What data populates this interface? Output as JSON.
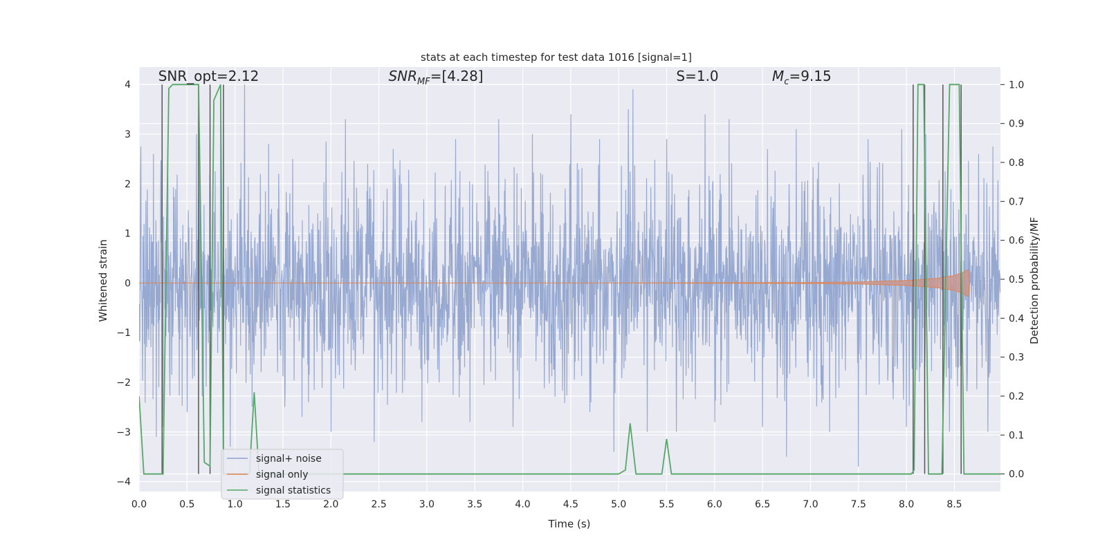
{
  "chart_data": {
    "type": "line",
    "title": "stats at each timestep for test data 1016 [signal=1]",
    "xlabel": "Time (s)",
    "ylabel": "Whitened strain",
    "ylabel_right": "Detection probability/MF",
    "xlim": [
      0.0,
      8.98
    ],
    "ylim": [
      -4.2,
      4.35
    ],
    "ylim_right": [
      -0.045,
      1.045
    ],
    "x_ticks": [
      "0.0",
      "0.5",
      "1.0",
      "1.5",
      "2.0",
      "2.5",
      "3.0",
      "3.5",
      "4.0",
      "4.5",
      "5.0",
      "5.5",
      "6.0",
      "6.5",
      "7.0",
      "7.5",
      "8.0",
      "8.5"
    ],
    "y_ticks": [
      "−4",
      "−3",
      "−2",
      "−1",
      "0",
      "1",
      "2",
      "3",
      "4"
    ],
    "y_ticks_right": [
      "0.0",
      "0.1",
      "0.2",
      "0.3",
      "0.4",
      "0.5",
      "0.6",
      "0.7",
      "0.8",
      "0.9",
      "1.0"
    ],
    "grid": true,
    "legend_position": "lower-left",
    "annotations": [
      {
        "label": "SNR_opt=2.12",
        "x": 0.2,
        "y": 4.1
      },
      {
        "label": "SNR_MF=[4.28]",
        "x": 2.6,
        "y": 4.1
      },
      {
        "label": "S=1.0",
        "x": 5.6,
        "y": 4.1
      },
      {
        "label": "M_c=9.15",
        "x": 6.6,
        "y": 4.1
      }
    ],
    "series": [
      {
        "name": "signal+ noise",
        "axis": "left",
        "color": "#8ea2cc",
        "description": "whitened noise trace, amplitude mostly within ±2.5",
        "envelope": {
          "upper": 2.5,
          "lower": -2.3
        },
        "peaks": [
          [
            0.02,
            2.75
          ],
          [
            0.15,
            2.6
          ],
          [
            0.3,
            2.7
          ],
          [
            0.6,
            3.0
          ],
          [
            0.85,
            3.6
          ],
          [
            1.1,
            4.0
          ],
          [
            1.35,
            2.8
          ],
          [
            1.6,
            2.5
          ],
          [
            1.95,
            2.85
          ],
          [
            2.15,
            3.3
          ],
          [
            2.45,
            2.8
          ],
          [
            2.65,
            2.7
          ],
          [
            2.95,
            3.05
          ],
          [
            3.3,
            2.9
          ],
          [
            3.45,
            3.35
          ],
          [
            3.75,
            3.3
          ],
          [
            4.1,
            3.0
          ],
          [
            4.5,
            3.4
          ],
          [
            4.8,
            2.9
          ],
          [
            5.1,
            3.5
          ],
          [
            5.15,
            3.9
          ],
          [
            5.5,
            2.9
          ],
          [
            5.9,
            3.4
          ],
          [
            6.15,
            3.3
          ],
          [
            6.55,
            2.7
          ],
          [
            6.85,
            3.1
          ],
          [
            7.2,
            3.1
          ],
          [
            7.6,
            2.9
          ],
          [
            7.95,
            3.1
          ],
          [
            8.2,
            3.0
          ],
          [
            8.75,
            2.6
          ],
          [
            8.9,
            2.75
          ]
        ],
        "troughs": [
          [
            0.18,
            -3.1
          ],
          [
            0.25,
            -2.9
          ],
          [
            0.5,
            -2.6
          ],
          [
            0.95,
            -3.3
          ],
          [
            1.7,
            -2.7
          ],
          [
            2.0,
            -3.0
          ],
          [
            2.45,
            -3.2
          ],
          [
            2.95,
            -2.8
          ],
          [
            3.45,
            -2.8
          ],
          [
            3.9,
            -2.9
          ],
          [
            4.7,
            -2.6
          ],
          [
            4.95,
            -3.4
          ],
          [
            5.3,
            -3.0
          ],
          [
            5.6,
            -3.0
          ],
          [
            6.0,
            -2.8
          ],
          [
            6.5,
            -2.9
          ],
          [
            6.75,
            -3.5
          ],
          [
            7.2,
            -3.0
          ],
          [
            7.5,
            -3.7
          ],
          [
            8.0,
            -2.9
          ],
          [
            8.45,
            -3.0
          ],
          [
            8.85,
            -3.0
          ]
        ]
      },
      {
        "name": "signal only",
        "axis": "left",
        "color": "#dd8452",
        "description": "chirp signal, near zero then growing to ~±0.25 at 8.65 s",
        "x": [
          0.0,
          5.0,
          6.0,
          7.0,
          7.5,
          8.0,
          8.3,
          8.5,
          8.6,
          8.65,
          8.66
        ],
        "amplitude": [
          0.0,
          0.0,
          0.005,
          0.01,
          0.02,
          0.05,
          0.09,
          0.15,
          0.22,
          0.28,
          0.0
        ]
      },
      {
        "name": "signal statistics",
        "axis": "right",
        "color": "#55a868",
        "x": [
          0.0,
          0.05,
          0.25,
          0.31,
          0.35,
          0.62,
          0.68,
          0.74,
          0.78,
          0.85,
          0.88,
          0.92,
          1.15,
          1.2,
          1.25,
          5.0,
          5.07,
          5.12,
          5.18,
          5.45,
          5.5,
          5.55,
          8.05,
          8.08,
          8.12,
          8.18,
          8.23,
          8.3,
          8.37,
          8.45,
          8.55,
          8.6,
          8.98
        ],
        "y": [
          0.2,
          0.0,
          0.0,
          0.99,
          1.0,
          1.0,
          0.03,
          0.02,
          0.96,
          1.0,
          0.0,
          0.0,
          0.0,
          0.21,
          0.0,
          0.0,
          0.01,
          0.13,
          0.0,
          0.0,
          0.09,
          0.0,
          0.0,
          0.01,
          1.0,
          1.0,
          0.0,
          0.0,
          0.0,
          1.0,
          1.0,
          0.0,
          0.0
        ]
      }
    ],
    "vertical_lines": [
      0.24,
      0.62,
      0.74,
      0.88,
      8.07,
      8.19,
      8.38,
      8.57
    ]
  }
}
